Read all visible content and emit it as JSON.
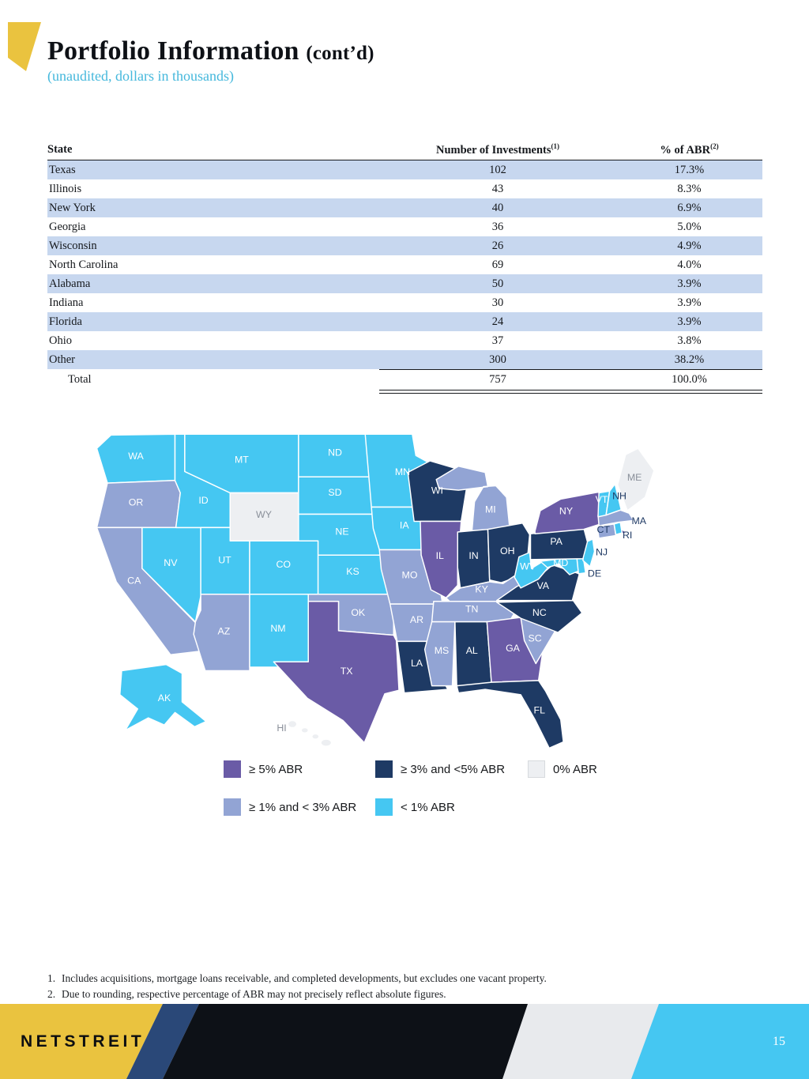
{
  "header": {
    "title": "Portfolio Information",
    "title_suffix": "(cont’d)",
    "subtitle": "(unaudited, dollars in thousands)"
  },
  "brand": {
    "yellow": "#eac33f",
    "footer_navy": "#2a4878",
    "footer_black": "#0d1117",
    "footer_gray": "#e8eaed",
    "cyan": "#45c7f2",
    "row_blue": "#c7d7ef",
    "subtitle": "#45b8dc"
  },
  "table": {
    "columns": [
      "State",
      "Number of Investments",
      "% of ABR"
    ],
    "col_superscripts": [
      "",
      "(1)",
      "(2)"
    ],
    "rows": [
      {
        "state": "Texas",
        "investments": "102",
        "abr": "17.3%"
      },
      {
        "state": "Illinois",
        "investments": "43",
        "abr": "8.3%"
      },
      {
        "state": "New York",
        "investments": "40",
        "abr": "6.9%"
      },
      {
        "state": "Georgia",
        "investments": "36",
        "abr": "5.0%"
      },
      {
        "state": "Wisconsin",
        "investments": "26",
        "abr": "4.9%"
      },
      {
        "state": "North Carolina",
        "investments": "69",
        "abr": "4.0%"
      },
      {
        "state": "Alabama",
        "investments": "50",
        "abr": "3.9%"
      },
      {
        "state": "Indiana",
        "investments": "30",
        "abr": "3.9%"
      },
      {
        "state": "Florida",
        "investments": "24",
        "abr": "3.9%"
      },
      {
        "state": "Ohio",
        "investments": "37",
        "abr": "3.8%"
      },
      {
        "state": "Other",
        "investments": "300",
        "abr": "38.2%"
      }
    ],
    "total": {
      "state": "Total",
      "investments": "757",
      "abr": "100.0%"
    }
  },
  "map": {
    "colors": {
      "ge5": "#6a5ba6",
      "ge3lt5": "#1e3a64",
      "ge1lt3": "#92a4d4",
      "lt1": "#45c7f2",
      "zero": "#edeff2"
    },
    "legend": [
      {
        "label": "≥ 5% ABR",
        "key": "ge5"
      },
      {
        "label": "≥ 3% and <5% ABR",
        "key": "ge3lt5"
      },
      {
        "label": "0% ABR",
        "key": "zero"
      },
      {
        "label": "≥ 1% and < 3% ABR",
        "key": "ge1lt3"
      },
      {
        "label": "< 1% ABR",
        "key": "lt1"
      }
    ],
    "states": [
      {
        "code": "WA",
        "category": "lt1"
      },
      {
        "code": "OR",
        "category": "ge1lt3"
      },
      {
        "code": "CA",
        "category": "ge1lt3"
      },
      {
        "code": "NV",
        "category": "lt1"
      },
      {
        "code": "ID",
        "category": "lt1"
      },
      {
        "code": "MT",
        "category": "lt1"
      },
      {
        "code": "WY",
        "category": "zero"
      },
      {
        "code": "UT",
        "category": "lt1"
      },
      {
        "code": "CO",
        "category": "lt1"
      },
      {
        "code": "AZ",
        "category": "ge1lt3"
      },
      {
        "code": "NM",
        "category": "lt1"
      },
      {
        "code": "ND",
        "category": "lt1"
      },
      {
        "code": "SD",
        "category": "lt1"
      },
      {
        "code": "NE",
        "category": "lt1"
      },
      {
        "code": "KS",
        "category": "lt1"
      },
      {
        "code": "OK",
        "category": "ge1lt3"
      },
      {
        "code": "TX",
        "category": "ge5"
      },
      {
        "code": "MN",
        "category": "lt1"
      },
      {
        "code": "IA",
        "category": "lt1"
      },
      {
        "code": "MO",
        "category": "ge1lt3"
      },
      {
        "code": "AR",
        "category": "ge1lt3"
      },
      {
        "code": "LA",
        "category": "ge3lt5"
      },
      {
        "code": "WI",
        "category": "ge3lt5"
      },
      {
        "code": "IL",
        "category": "ge5"
      },
      {
        "code": "MI",
        "category": "ge1lt3"
      },
      {
        "code": "IN",
        "category": "ge3lt5"
      },
      {
        "code": "OH",
        "category": "ge3lt5"
      },
      {
        "code": "KY",
        "category": "ge1lt3"
      },
      {
        "code": "TN",
        "category": "ge1lt3"
      },
      {
        "code": "MS",
        "category": "ge1lt3"
      },
      {
        "code": "AL",
        "category": "ge3lt5"
      },
      {
        "code": "GA",
        "category": "ge5"
      },
      {
        "code": "FL",
        "category": "ge3lt5"
      },
      {
        "code": "SC",
        "category": "ge1lt3"
      },
      {
        "code": "NC",
        "category": "ge3lt5"
      },
      {
        "code": "VA",
        "category": "ge3lt5"
      },
      {
        "code": "WV",
        "category": "lt1"
      },
      {
        "code": "MD",
        "category": "lt1"
      },
      {
        "code": "DE",
        "category": "lt1"
      },
      {
        "code": "NJ",
        "category": "lt1"
      },
      {
        "code": "PA",
        "category": "ge3lt5"
      },
      {
        "code": "NY",
        "category": "ge5"
      },
      {
        "code": "CT",
        "category": "ge1lt3"
      },
      {
        "code": "RI",
        "category": "lt1"
      },
      {
        "code": "MA",
        "category": "ge1lt3"
      },
      {
        "code": "VT",
        "category": "lt1"
      },
      {
        "code": "NH",
        "category": "lt1"
      },
      {
        "code": "ME",
        "category": "zero"
      },
      {
        "code": "AK",
        "category": "lt1"
      },
      {
        "code": "HI",
        "category": "zero"
      }
    ]
  },
  "footnotes": [
    {
      "num": "1.",
      "text": "Includes acquisitions, mortgage loans receivable, and completed developments, but excludes one vacant property."
    },
    {
      "num": "2.",
      "text": "Due to rounding, respective percentage of ABR may not precisely reflect absolute figures."
    }
  ],
  "footer": {
    "brand": "NETSTREIT",
    "page": "15"
  }
}
